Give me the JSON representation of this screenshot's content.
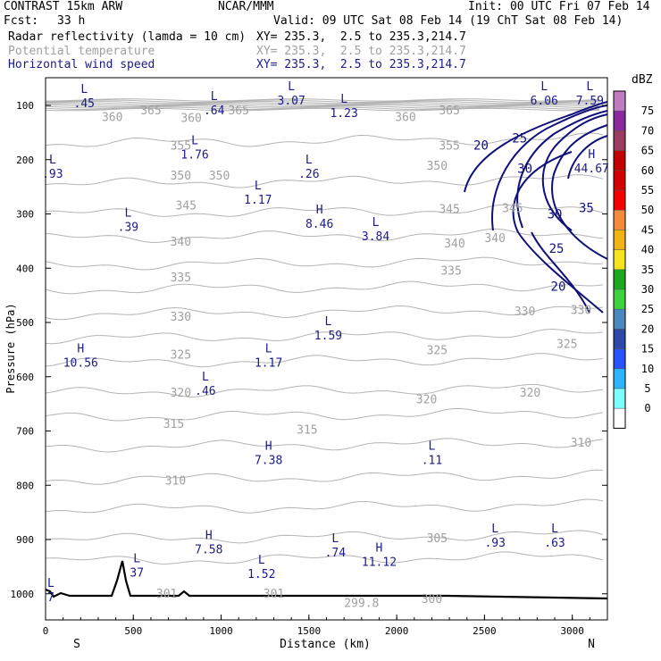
{
  "header": {
    "model": "CONTRAST 15km ARW",
    "org": "NCAR/MMM",
    "init": "Init: 00 UTC Fri 07 Feb 14",
    "fcst_label": "Fcst:",
    "fcst_value": "33 h",
    "valid": "Valid: 09 UTC Sat 08 Feb 14 (19 ChT Sat 08 Feb 14)",
    "fields": [
      {
        "name": "Radar reflectivity (lamda = 10 cm)",
        "xy": "XY= 235.3,  2.5 to 235.3,214.7",
        "color": "#000000"
      },
      {
        "name": "Potential temperature",
        "xy": "XY= 235.3,  2.5 to 235.3,214.7",
        "color": "#a0a0a0"
      },
      {
        "name": "Horizontal wind speed",
        "xy": "XY= 235.3,  2.5 to 235.3,214.7",
        "color": "#1a1a8c"
      }
    ]
  },
  "chart_data": {
    "type": "contour",
    "xlabel": "Distance (km)",
    "ylabel": "Pressure (hPa)",
    "xlim": [
      0,
      3200
    ],
    "ylim": [
      1050,
      50
    ],
    "x_ticks": [
      0,
      500,
      1000,
      1500,
      2000,
      2500,
      3000
    ],
    "y_ticks": [
      100,
      200,
      300,
      400,
      500,
      600,
      700,
      800,
      900,
      1000
    ],
    "x_end_labels": {
      "left": "S",
      "right": "N"
    },
    "theta_labels": [
      {
        "text": "365",
        "x": 600,
        "p": 110
      },
      {
        "text": "365",
        "x": 1100,
        "p": 110
      },
      {
        "text": "365",
        "x": 2300,
        "p": 110
      },
      {
        "text": "360",
        "x": 380,
        "p": 122
      },
      {
        "text": "360",
        "x": 830,
        "p": 124
      },
      {
        "text": "360",
        "x": 2050,
        "p": 122
      },
      {
        "text": "355",
        "x": 770,
        "p": 175
      },
      {
        "text": "355",
        "x": 2300,
        "p": 175
      },
      {
        "text": "350",
        "x": 770,
        "p": 230
      },
      {
        "text": "350",
        "x": 990,
        "p": 230
      },
      {
        "text": "350",
        "x": 2230,
        "p": 212
      },
      {
        "text": "345",
        "x": 800,
        "p": 285
      },
      {
        "text": "345",
        "x": 2300,
        "p": 292
      },
      {
        "text": "345",
        "x": 2660,
        "p": 290
      },
      {
        "text": "340",
        "x": 770,
        "p": 352
      },
      {
        "text": "340",
        "x": 2330,
        "p": 355
      },
      {
        "text": "340",
        "x": 2560,
        "p": 345
      },
      {
        "text": "335",
        "x": 770,
        "p": 418
      },
      {
        "text": "335",
        "x": 2310,
        "p": 405
      },
      {
        "text": "330",
        "x": 770,
        "p": 490
      },
      {
        "text": "330",
        "x": 2730,
        "p": 480
      },
      {
        "text": "330",
        "x": 3050,
        "p": 478
      },
      {
        "text": "325",
        "x": 770,
        "p": 560
      },
      {
        "text": "325",
        "x": 2230,
        "p": 552
      },
      {
        "text": "325",
        "x": 2970,
        "p": 540
      },
      {
        "text": "320",
        "x": 770,
        "p": 630
      },
      {
        "text": "320",
        "x": 2170,
        "p": 642
      },
      {
        "text": "320",
        "x": 2760,
        "p": 630
      },
      {
        "text": "315",
        "x": 730,
        "p": 688
      },
      {
        "text": "315",
        "x": 1490,
        "p": 698
      },
      {
        "text": "310",
        "x": 740,
        "p": 792
      },
      {
        "text": "310",
        "x": 3050,
        "p": 722
      },
      {
        "text": "305",
        "x": 2230,
        "p": 898
      },
      {
        "text": "301",
        "x": 690,
        "p": 1000
      },
      {
        "text": "301",
        "x": 1300,
        "p": 1000
      },
      {
        "text": "299.8",
        "x": 1800,
        "p": 1018
      },
      {
        "text": "300",
        "x": 2200,
        "p": 1010
      }
    ],
    "wind_contour_labels": [
      {
        "text": "20",
        "x": 2480,
        "p": 175
      },
      {
        "text": "25",
        "x": 2700,
        "p": 162
      },
      {
        "text": "30",
        "x": 2730,
        "p": 218
      },
      {
        "text": "35",
        "x": 3080,
        "p": 290
      },
      {
        "text": "30",
        "x": 2900,
        "p": 302
      },
      {
        "text": "25",
        "x": 2910,
        "p": 365
      },
      {
        "text": "20",
        "x": 2920,
        "p": 435
      }
    ],
    "extrema": [
      {
        "type": "L",
        "value": ".45",
        "x": 220,
        "p": 90
      },
      {
        "type": "L",
        "value": ".64",
        "x": 960,
        "p": 103
      },
      {
        "type": "L",
        "value": "3.07",
        "x": 1400,
        "p": 85
      },
      {
        "type": "L",
        "value": "1.23",
        "x": 1700,
        "p": 108
      },
      {
        "type": "L",
        "value": "6.06",
        "x": 2840,
        "p": 85
      },
      {
        "type": "L",
        "value": "7.59",
        "x": 3100,
        "p": 85
      },
      {
        "type": "L",
        "value": "1.76",
        "x": 850,
        "p": 185
      },
      {
        "type": "L",
        "value": ".26",
        "x": 1500,
        "p": 220
      },
      {
        "type": "H",
        "value": "44.67",
        "x": 3110,
        "p": 210
      },
      {
        "type": "L",
        "value": ".93",
        "x": 40,
        "p": 220
      },
      {
        "type": "L",
        "value": "1.17",
        "x": 1210,
        "p": 268
      },
      {
        "type": "L",
        "value": ".39",
        "x": 470,
        "p": 318
      },
      {
        "type": "H",
        "value": "8.46",
        "x": 1560,
        "p": 312
      },
      {
        "type": "L",
        "value": "3.84",
        "x": 1880,
        "p": 335
      },
      {
        "type": "L",
        "value": "1.59",
        "x": 1610,
        "p": 518
      },
      {
        "type": "H",
        "value": "10.56",
        "x": 200,
        "p": 568
      },
      {
        "type": "L",
        "value": "1.17",
        "x": 1270,
        "p": 568
      },
      {
        "type": "L",
        "value": ".46",
        "x": 910,
        "p": 620
      },
      {
        "type": "H",
        "value": "7.38",
        "x": 1270,
        "p": 748
      },
      {
        "type": "L",
        "value": ".11",
        "x": 2200,
        "p": 748
      },
      {
        "type": "L",
        "value": ".93",
        "x": 2560,
        "p": 900
      },
      {
        "type": "L",
        "value": ".63",
        "x": 2900,
        "p": 900
      },
      {
        "type": "H",
        "value": "7.58",
        "x": 930,
        "p": 912
      },
      {
        "type": "L",
        "value": ".74",
        "x": 1650,
        "p": 918
      },
      {
        "type": "H",
        "value": "11.12",
        "x": 1900,
        "p": 935
      },
      {
        "type": "L",
        "value": "1.52",
        "x": 1230,
        "p": 958
      },
      {
        "type": "L",
        "value": "37",
        "x": 520,
        "p": 955
      },
      {
        "type": "L",
        "value": "7",
        "x": 30,
        "p": 1000
      }
    ],
    "colorbar": {
      "unit": "dBZ",
      "levels": [
        0,
        5,
        10,
        15,
        20,
        25,
        30,
        35,
        40,
        45,
        50,
        55,
        60,
        65,
        70,
        75
      ],
      "colors": [
        "#ffffff",
        "#7ffcfc",
        "#2cb4ff",
        "#2a52ff",
        "#2e4aa8",
        "#4c88c0",
        "#3fd23f",
        "#1ca81c",
        "#f8e41e",
        "#f2b414",
        "#f28c3c",
        "#f50000",
        "#d40000",
        "#c00000",
        "#9c3c60",
        "#8a2a9c",
        "#c07cc0"
      ]
    }
  }
}
